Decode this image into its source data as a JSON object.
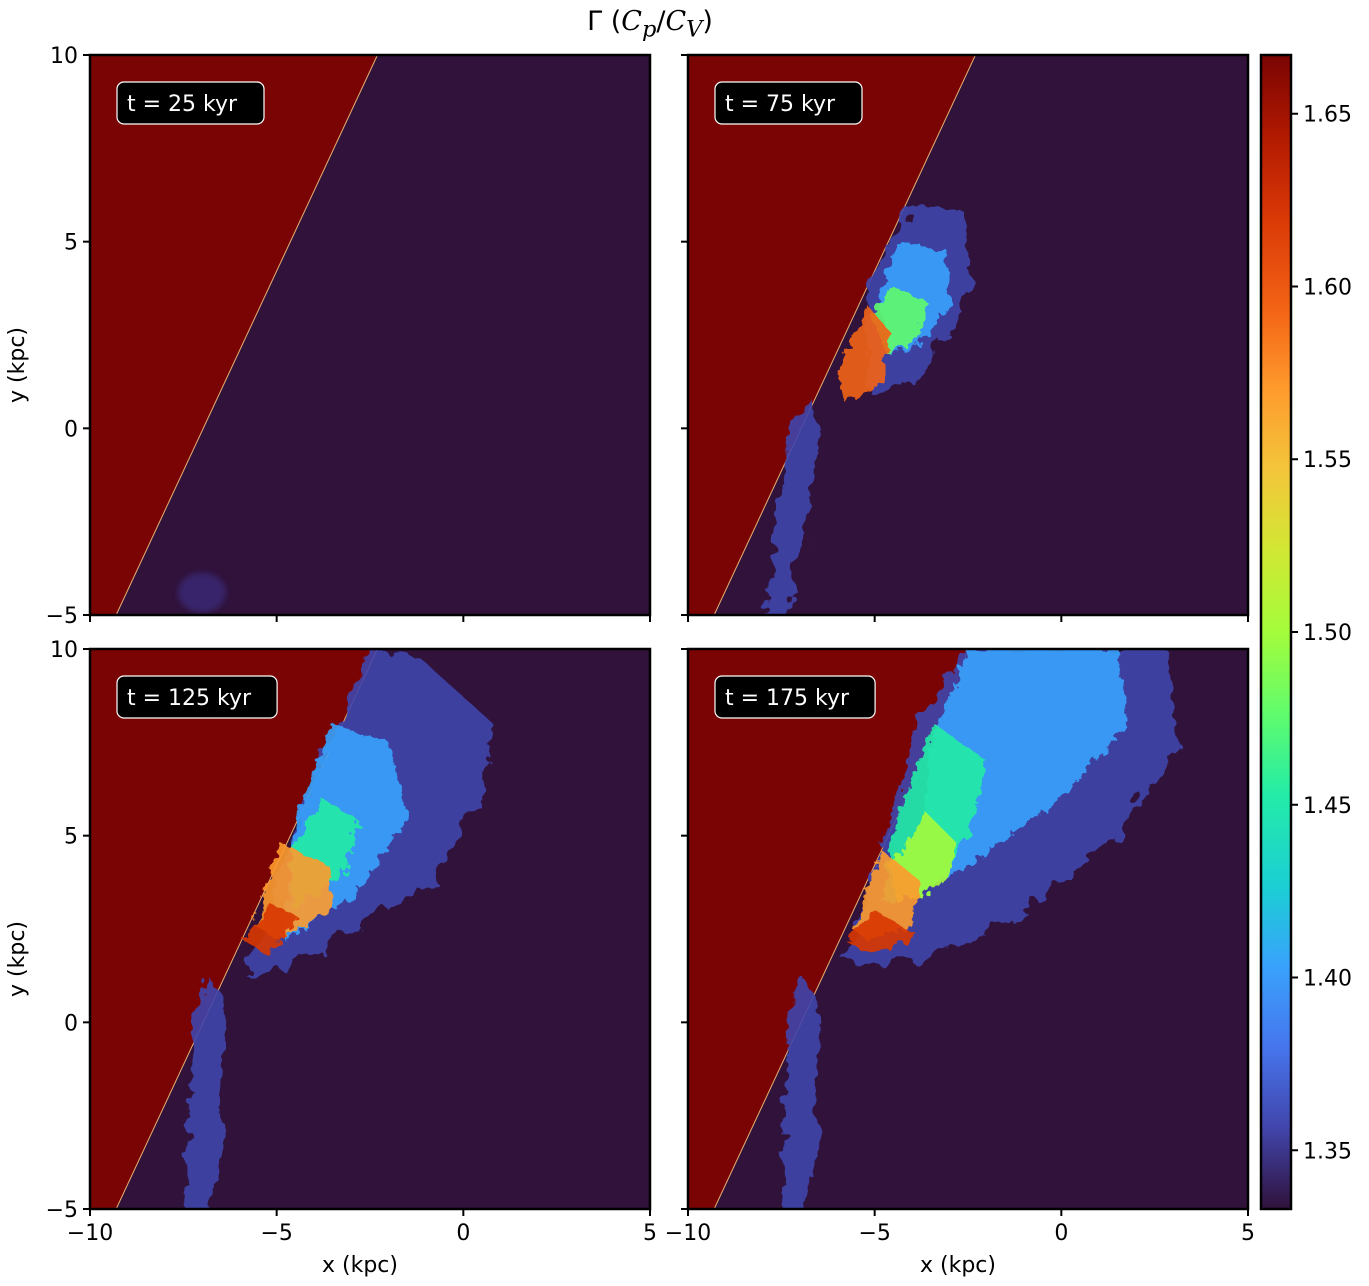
{
  "figure": {
    "title_symbol": "Γ",
    "title_paren_open": "(",
    "title_c1": "C",
    "title_sub1": "p",
    "title_slash": "/",
    "title_c2": "C",
    "title_sub2": "V",
    "title_paren_close": ")"
  },
  "chart_data": {
    "type": "heatmap",
    "title": "Γ (C_p/C_V)",
    "xlabel": "x (kpc)",
    "ylabel": "y (kpc)",
    "xlim": [
      -10,
      5
    ],
    "ylim": [
      -5,
      10
    ],
    "xticks": [
      -10,
      -5,
      0,
      5
    ],
    "yticks": [
      -5,
      0,
      5,
      10
    ],
    "colormap": "turbo",
    "colorbar": {
      "range": [
        1.333,
        1.667
      ],
      "ticks": [
        1.35,
        1.4,
        1.45,
        1.5,
        1.55,
        1.6,
        1.65
      ],
      "tick_labels": [
        "1.35",
        "1.40",
        "1.45",
        "1.50",
        "1.55",
        "1.60",
        "1.65"
      ]
    },
    "panels": [
      {
        "label": "t = 25 kyr",
        "time_kyr": 25
      },
      {
        "label": "t = 75 kyr",
        "time_kyr": 75
      },
      {
        "label": "t = 125 kyr",
        "time_kyr": 125
      },
      {
        "label": "t = 175 kyr",
        "time_kyr": 175
      }
    ],
    "region_values": {
      "left_region_gamma": 1.667,
      "background_gamma": 1.333
    }
  },
  "colors": {
    "left_region": "#7a0403",
    "background": "#30123b"
  }
}
